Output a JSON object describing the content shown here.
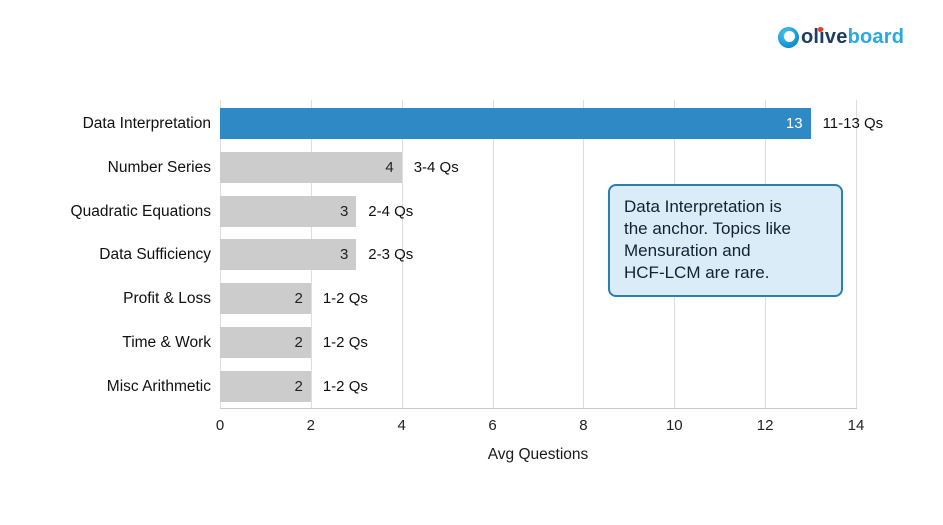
{
  "logo": {
    "name": "oliveboard",
    "part_navy": "olive",
    "part_blue": "board",
    "color_navy": "#1c3e63",
    "color_blue": "#29a9e1",
    "i_dot_color": "#e8402d"
  },
  "chart_data": {
    "type": "bar",
    "orientation": "horizontal",
    "title": "",
    "xlabel": "Avg Questions",
    "ylabel": "",
    "xlim": [
      0,
      14
    ],
    "xticks": [
      0,
      2,
      4,
      6,
      8,
      10,
      12,
      14
    ],
    "grid": true,
    "legend": false,
    "categories": [
      "Data Interpretation",
      "Number Series",
      "Quadratic Equations",
      "Data Sufficiency",
      "Profit & Loss",
      "Time & Work",
      "Misc Arithmetic"
    ],
    "values": [
      13,
      4,
      3,
      3,
      2,
      2,
      2
    ],
    "bar_value_labels": [
      "13",
      "4",
      "3",
      "3",
      "2",
      "2",
      "2"
    ],
    "range_labels": [
      "11-13 Qs",
      "3-4 Qs",
      "2-4 Qs",
      "2-3 Qs",
      "1-2 Qs",
      "1-2 Qs",
      "1-2 Qs"
    ],
    "highlight_index": 0,
    "highlight_color": "#2e89c4",
    "bar_color": "#cccccc",
    "value_label_color_highlight": "#ffffff",
    "value_label_color": "#222222",
    "grid_color": "#dedede"
  },
  "annotation": {
    "lines": [
      "Data Interpretation is",
      "the anchor. Topics like",
      "Mensuration and",
      "HCF-LCM are rare."
    ],
    "fill_color": "#d9ecf8",
    "border_color": "#2a7fad"
  }
}
